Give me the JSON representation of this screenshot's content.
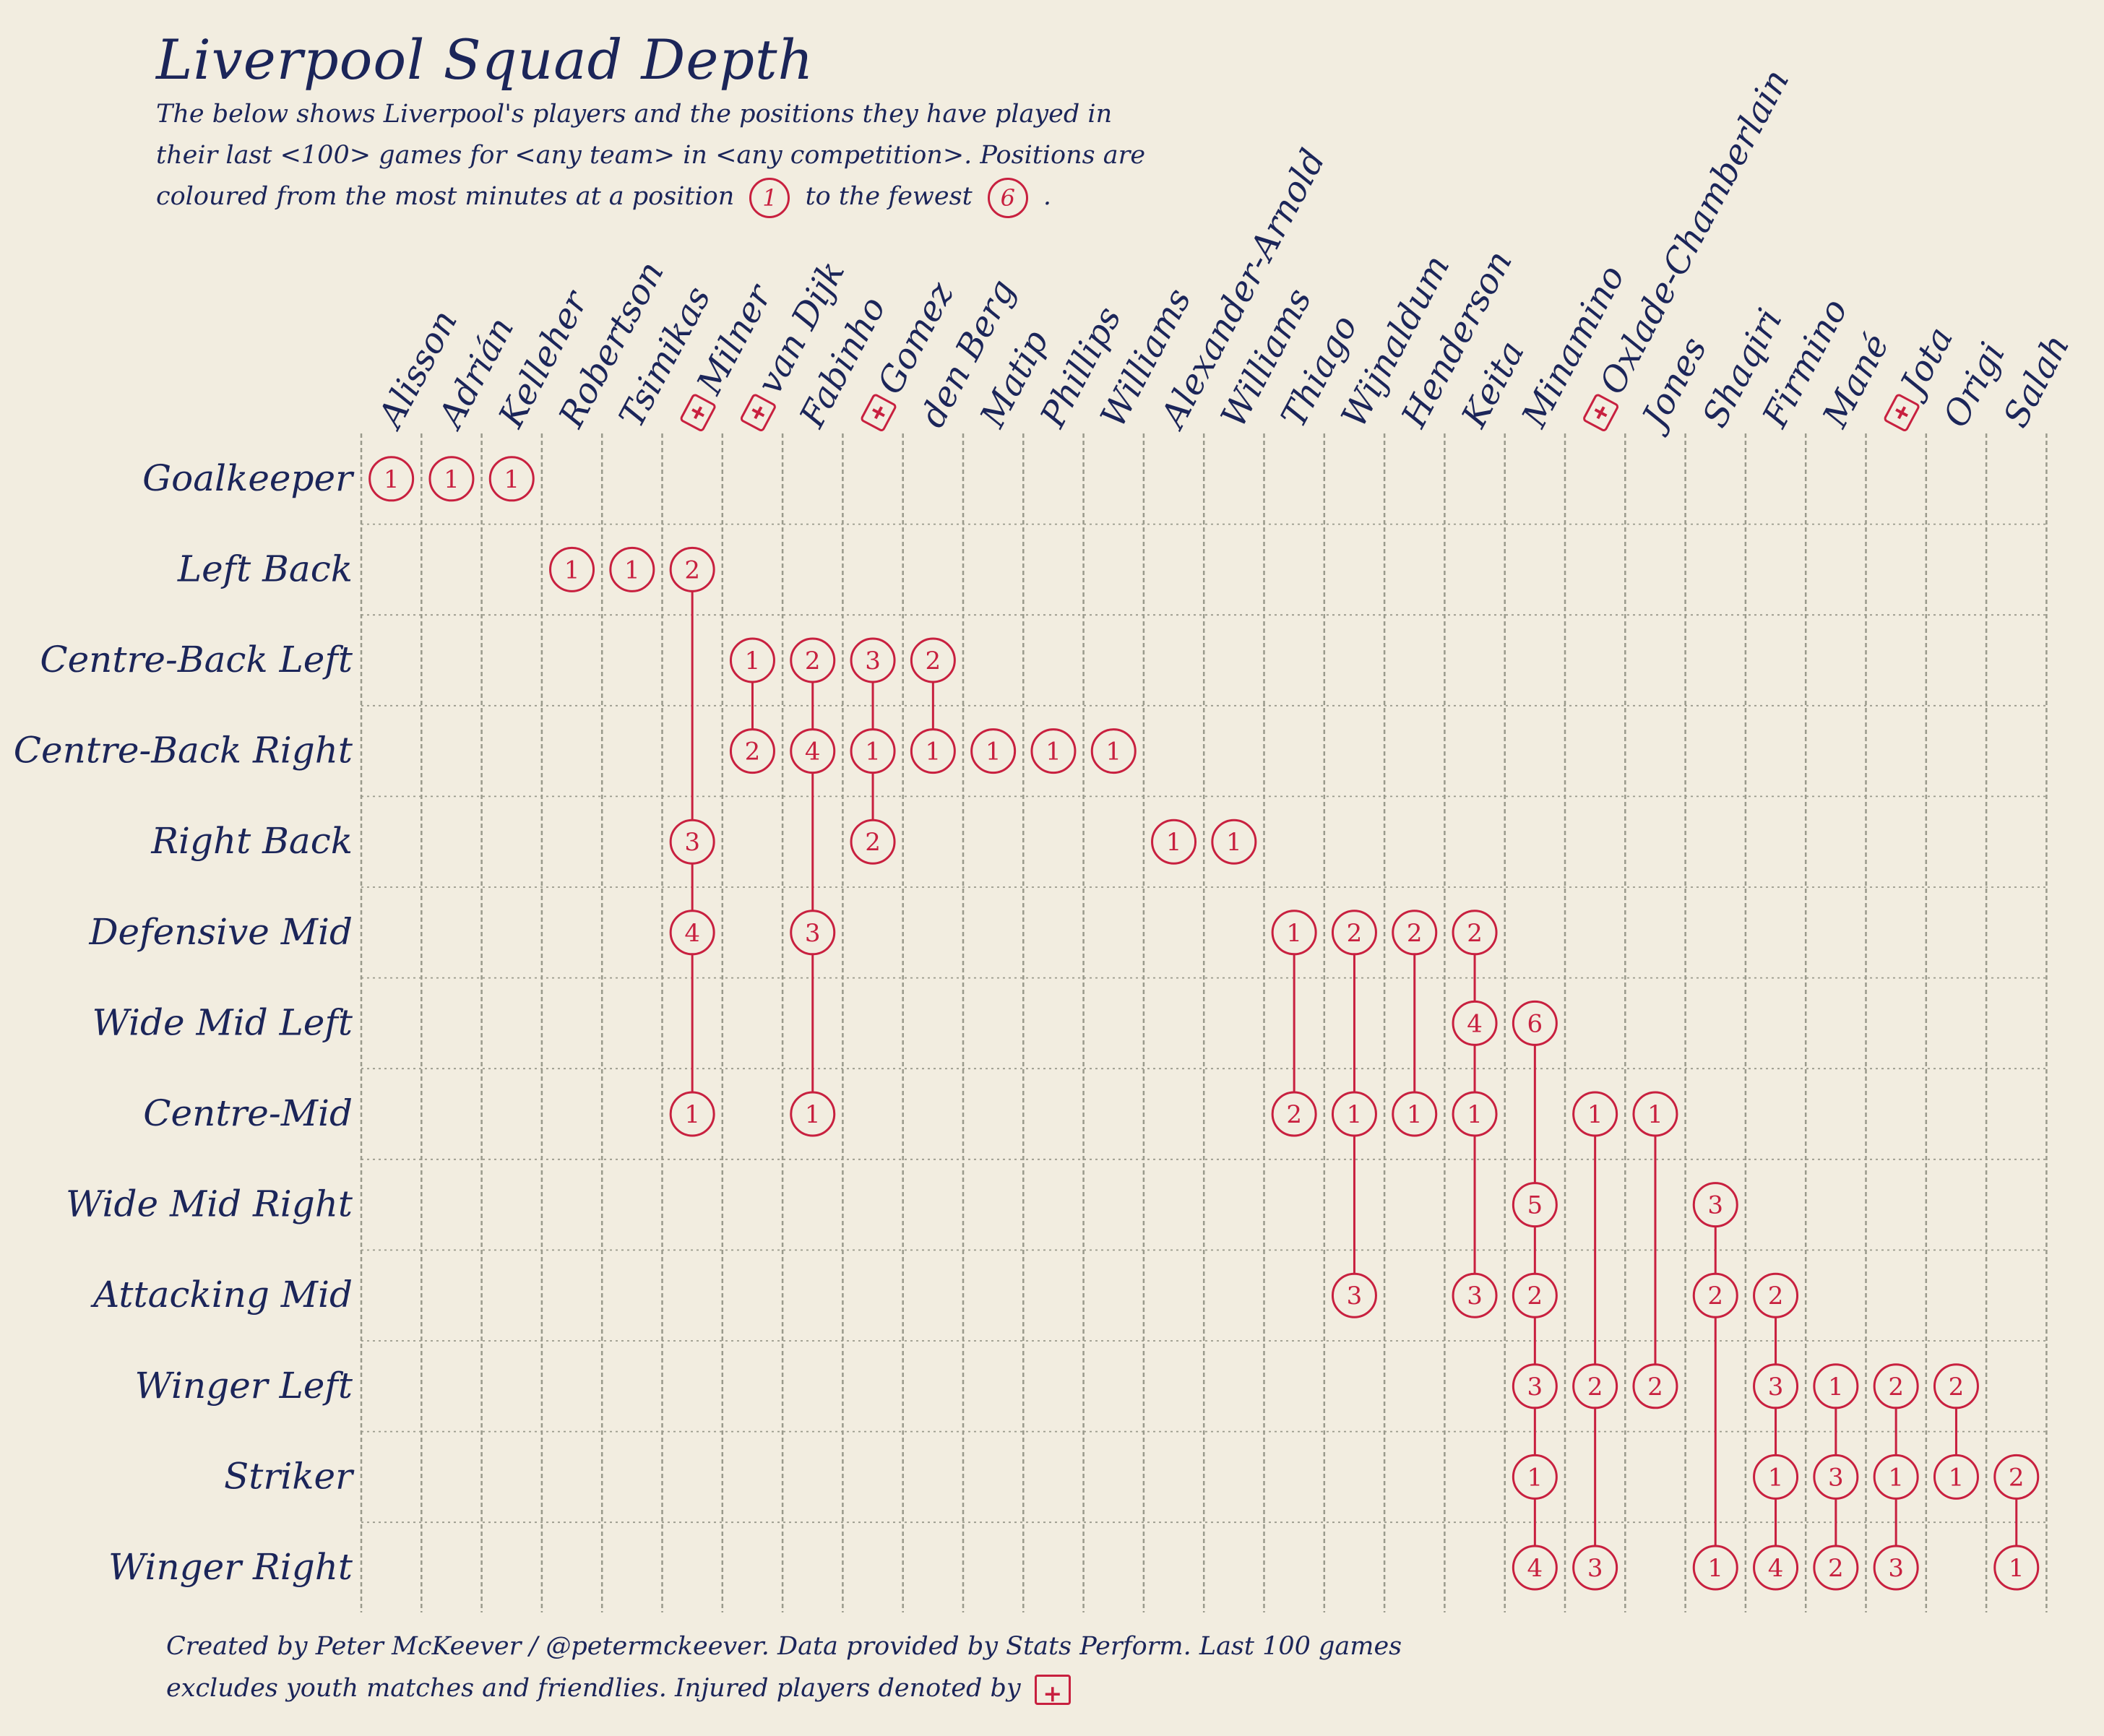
{
  "title": "Liverpool Squad Depth",
  "subtitle": {
    "line1": "The below shows Liverpool's players and the positions they have played in",
    "line2": "their last <100> games for <any team> in <any competition>. Positions are",
    "line3_a": "coloured from the most minutes at a position",
    "legend_first": "1",
    "line3_b": "to the fewest",
    "legend_last": "6",
    "line3_c": "."
  },
  "footer": {
    "line1": "Created by Peter McKeever / @petermckeever. Data provided by Stats Perform. Last 100 games",
    "line2": "excludes youth matches and friendlies. Injured players denoted by"
  },
  "colors": {
    "background": "#f2ede0",
    "text": "#1b2559",
    "marker": "#c8203f",
    "grid": "#9a9a8c"
  },
  "chart_data": {
    "type": "table",
    "rows": [
      "Goalkeeper",
      "Left Back",
      "Centre-Back Left",
      "Centre-Back Right",
      "Right Back",
      "Defensive Mid",
      "Wide Mid Left",
      "Centre-Mid",
      "Wide Mid Right",
      "Attacking Mid",
      "Winger Left",
      "Striker",
      "Winger Right"
    ],
    "players": [
      {
        "name": "Alisson",
        "injured": false,
        "positions": [
          {
            "row": 0,
            "rank": 1
          }
        ]
      },
      {
        "name": "Adrián",
        "injured": false,
        "positions": [
          {
            "row": 0,
            "rank": 1
          }
        ]
      },
      {
        "name": "Kelleher",
        "injured": false,
        "positions": [
          {
            "row": 0,
            "rank": 1
          }
        ]
      },
      {
        "name": "Robertson",
        "injured": false,
        "positions": [
          {
            "row": 1,
            "rank": 1
          }
        ]
      },
      {
        "name": "Tsimikas",
        "injured": false,
        "positions": [
          {
            "row": 1,
            "rank": 1
          }
        ]
      },
      {
        "name": "Milner",
        "injured": true,
        "positions": [
          {
            "row": 1,
            "rank": 2
          },
          {
            "row": 4,
            "rank": 3
          },
          {
            "row": 5,
            "rank": 4
          },
          {
            "row": 7,
            "rank": 1
          }
        ]
      },
      {
        "name": "van Dijk",
        "injured": true,
        "positions": [
          {
            "row": 2,
            "rank": 1
          },
          {
            "row": 3,
            "rank": 2
          }
        ]
      },
      {
        "name": "Fabinho",
        "injured": false,
        "positions": [
          {
            "row": 2,
            "rank": 2
          },
          {
            "row": 3,
            "rank": 4
          },
          {
            "row": 5,
            "rank": 3
          },
          {
            "row": 7,
            "rank": 1
          }
        ]
      },
      {
        "name": "Gomez",
        "injured": true,
        "positions": [
          {
            "row": 2,
            "rank": 3
          },
          {
            "row": 3,
            "rank": 1
          },
          {
            "row": 4,
            "rank": 2
          }
        ]
      },
      {
        "name": "den Berg",
        "injured": false,
        "positions": [
          {
            "row": 2,
            "rank": 2
          },
          {
            "row": 3,
            "rank": 1
          }
        ]
      },
      {
        "name": "Matip",
        "injured": false,
        "positions": [
          {
            "row": 3,
            "rank": 1
          }
        ]
      },
      {
        "name": "Phillips",
        "injured": false,
        "positions": [
          {
            "row": 3,
            "rank": 1
          }
        ]
      },
      {
        "name": "Williams",
        "injured": false,
        "positions": [
          {
            "row": 3,
            "rank": 1
          }
        ]
      },
      {
        "name": "Alexander-Arnold",
        "injured": false,
        "positions": [
          {
            "row": 4,
            "rank": 1
          }
        ]
      },
      {
        "name": "Williams",
        "injured": false,
        "positions": [
          {
            "row": 4,
            "rank": 1
          }
        ]
      },
      {
        "name": "Thiago",
        "injured": false,
        "positions": [
          {
            "row": 5,
            "rank": 1
          },
          {
            "row": 7,
            "rank": 2
          }
        ]
      },
      {
        "name": "Wijnaldum",
        "injured": false,
        "positions": [
          {
            "row": 5,
            "rank": 2
          },
          {
            "row": 7,
            "rank": 1
          },
          {
            "row": 9,
            "rank": 3
          }
        ]
      },
      {
        "name": "Henderson",
        "injured": false,
        "positions": [
          {
            "row": 5,
            "rank": 2
          },
          {
            "row": 7,
            "rank": 1
          }
        ]
      },
      {
        "name": "Keita",
        "injured": false,
        "positions": [
          {
            "row": 5,
            "rank": 2
          },
          {
            "row": 6,
            "rank": 4
          },
          {
            "row": 7,
            "rank": 1
          },
          {
            "row": 9,
            "rank": 3
          }
        ]
      },
      {
        "name": "Minamino",
        "injured": false,
        "positions": [
          {
            "row": 6,
            "rank": 6
          },
          {
            "row": 8,
            "rank": 5
          },
          {
            "row": 9,
            "rank": 2
          },
          {
            "row": 10,
            "rank": 3
          },
          {
            "row": 11,
            "rank": 1
          },
          {
            "row": 12,
            "rank": 4
          }
        ]
      },
      {
        "name": "Oxlade-Chamberlain",
        "injured": true,
        "positions": [
          {
            "row": 7,
            "rank": 1
          },
          {
            "row": 10,
            "rank": 2
          },
          {
            "row": 12,
            "rank": 3
          }
        ]
      },
      {
        "name": "Jones",
        "injured": false,
        "positions": [
          {
            "row": 7,
            "rank": 1
          },
          {
            "row": 10,
            "rank": 2
          }
        ]
      },
      {
        "name": "Shaqiri",
        "injured": false,
        "positions": [
          {
            "row": 8,
            "rank": 3
          },
          {
            "row": 9,
            "rank": 2
          },
          {
            "row": 12,
            "rank": 1
          }
        ]
      },
      {
        "name": "Firmino",
        "injured": false,
        "positions": [
          {
            "row": 9,
            "rank": 2
          },
          {
            "row": 10,
            "rank": 3
          },
          {
            "row": 11,
            "rank": 1
          },
          {
            "row": 12,
            "rank": 4
          }
        ]
      },
      {
        "name": "Mané",
        "injured": false,
        "positions": [
          {
            "row": 10,
            "rank": 1
          },
          {
            "row": 11,
            "rank": 3
          },
          {
            "row": 12,
            "rank": 2
          }
        ]
      },
      {
        "name": "Jota",
        "injured": true,
        "positions": [
          {
            "row": 10,
            "rank": 2
          },
          {
            "row": 11,
            "rank": 1
          },
          {
            "row": 12,
            "rank": 3
          }
        ]
      },
      {
        "name": "Origi",
        "injured": false,
        "positions": [
          {
            "row": 10,
            "rank": 2
          },
          {
            "row": 11,
            "rank": 1
          }
        ]
      },
      {
        "name": "Salah",
        "injured": false,
        "positions": [
          {
            "row": 11,
            "rank": 2
          },
          {
            "row": 12,
            "rank": 1
          }
        ]
      }
    ]
  }
}
